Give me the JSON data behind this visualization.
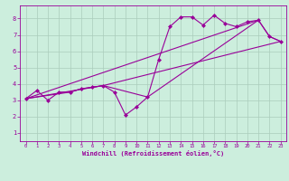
{
  "xlabel": "Windchill (Refroidissement éolien,°C)",
  "bg_color": "#cceedd",
  "line_color": "#990099",
  "grid_color": "#aaccbb",
  "xlim": [
    -0.5,
    23.5
  ],
  "ylim": [
    0.5,
    8.8
  ],
  "xticks": [
    0,
    1,
    2,
    3,
    4,
    5,
    6,
    7,
    8,
    9,
    10,
    11,
    12,
    13,
    14,
    15,
    16,
    17,
    18,
    19,
    20,
    21,
    22,
    23
  ],
  "yticks": [
    1,
    2,
    3,
    4,
    5,
    6,
    7,
    8
  ],
  "line1_x": [
    0,
    1,
    2,
    3,
    4,
    5,
    6,
    7,
    8,
    9,
    10,
    11,
    12,
    13,
    14,
    15,
    16,
    17,
    18,
    19,
    20,
    21,
    22,
    23
  ],
  "line1_y": [
    3.1,
    3.6,
    3.0,
    3.5,
    3.5,
    3.7,
    3.8,
    3.9,
    3.5,
    2.1,
    2.6,
    3.2,
    5.5,
    7.5,
    8.1,
    8.1,
    7.6,
    8.2,
    7.7,
    7.5,
    7.8,
    7.9,
    6.9,
    6.6
  ],
  "line2_x": [
    0,
    4,
    5,
    6,
    7,
    11,
    21,
    22,
    23
  ],
  "line2_y": [
    3.1,
    3.5,
    3.7,
    3.8,
    3.9,
    3.2,
    7.9,
    6.9,
    6.6
  ],
  "line3_x": [
    0,
    7,
    23
  ],
  "line3_y": [
    3.1,
    3.9,
    6.6
  ],
  "line4_x": [
    0,
    21
  ],
  "line4_y": [
    3.1,
    7.9
  ]
}
